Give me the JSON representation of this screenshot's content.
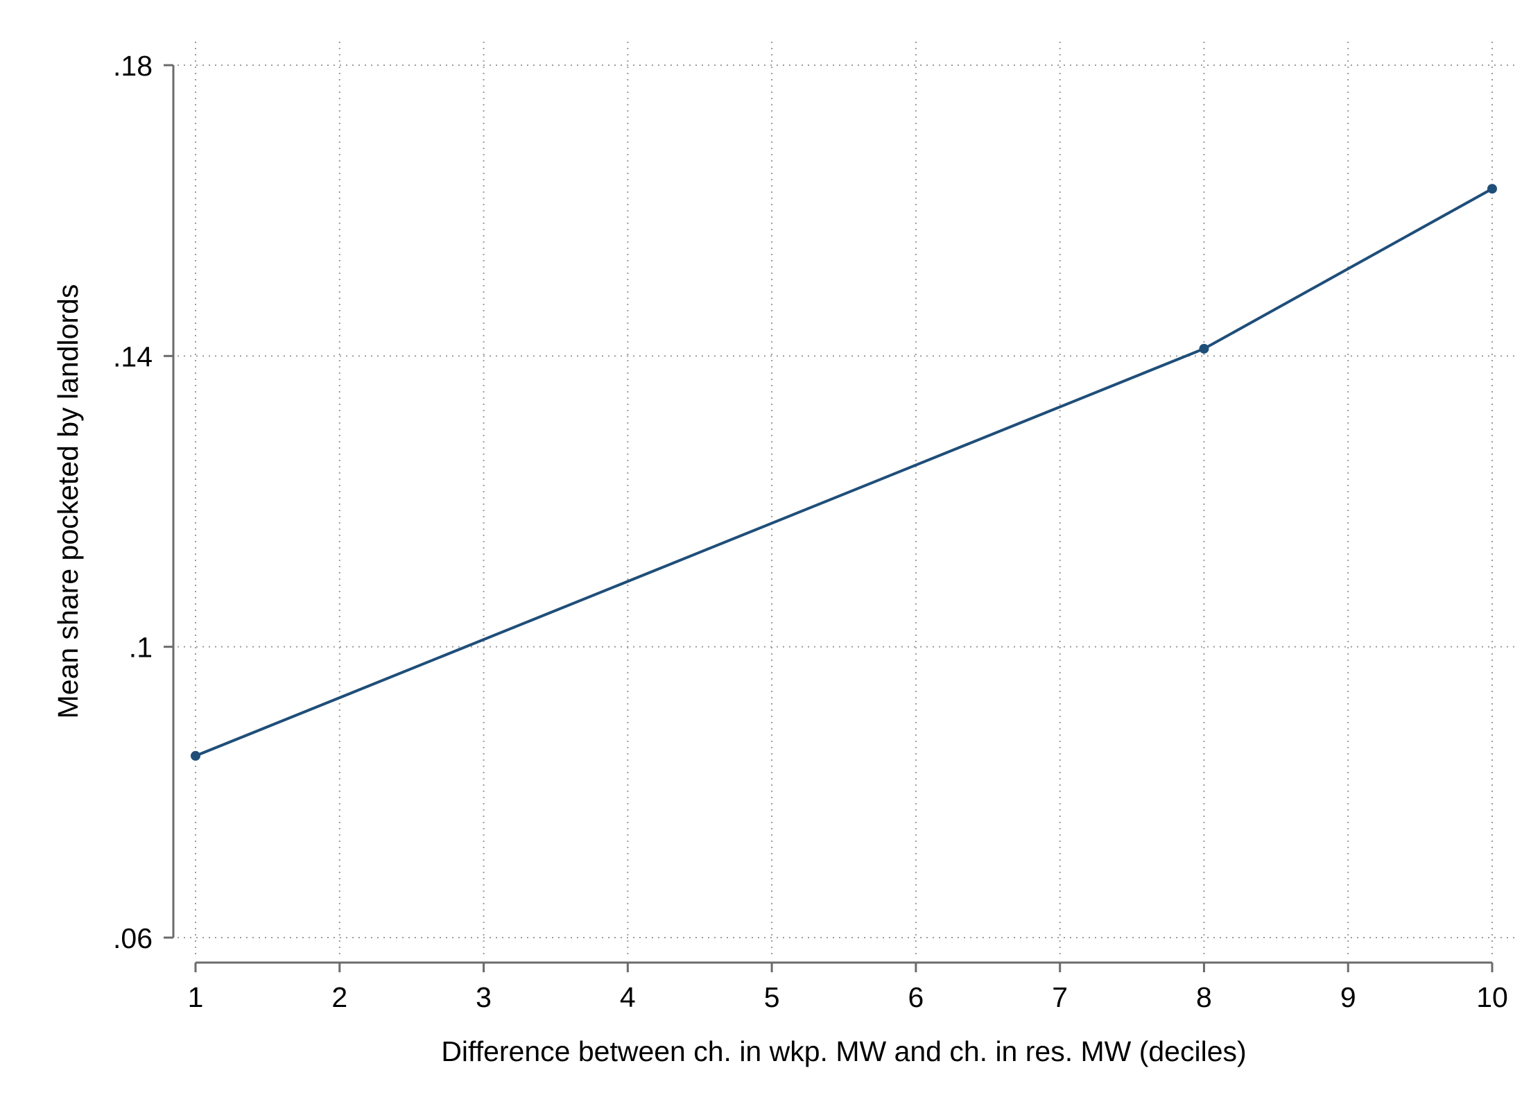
{
  "chart_data": {
    "type": "line",
    "title": "",
    "xlabel": "Difference between ch. in wkp. MW and ch. in res. MW (deciles)",
    "ylabel": "Mean share pocketed by landlords",
    "xlim": [
      1,
      10
    ],
    "ylim": [
      0.06,
      0.18
    ],
    "x_ticks": [
      1,
      2,
      3,
      4,
      5,
      6,
      7,
      8,
      9,
      10
    ],
    "x_tick_labels": [
      "1",
      "2",
      "3",
      "4",
      "5",
      "6",
      "7",
      "8",
      "9",
      "10"
    ],
    "y_ticks": [
      0.06,
      0.1,
      0.14,
      0.18
    ],
    "y_tick_labels": [
      ".06",
      ".1",
      ".14",
      ".18"
    ],
    "grid": true,
    "legend": "none",
    "series": [
      {
        "x": [
          1,
          8,
          10
        ],
        "y": [
          0.085,
          0.141,
          0.163
        ],
        "color": "#1f4e79"
      }
    ]
  }
}
